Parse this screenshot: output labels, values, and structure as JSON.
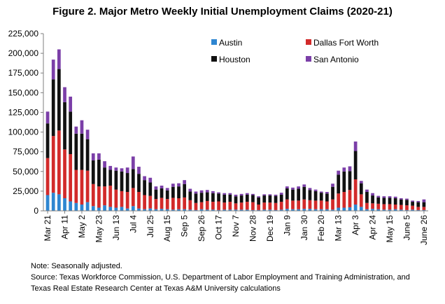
{
  "title": "Figure 2. Major Metro Weekly Initial Unemployment Claims (2020-21)",
  "note": "Note: Seasonally adjusted.",
  "source": "Source: Texas Workforce Commission, U.S. Department of Labor Employment and Training Administration, and Texas Real Estate Research Center at Texas A&M University calculations",
  "chart_data": {
    "type": "bar",
    "stacked": true,
    "ylim": [
      0,
      225000
    ],
    "yticks": [
      0,
      25000,
      50000,
      75000,
      100000,
      125000,
      150000,
      175000,
      200000,
      225000
    ],
    "ytick_labels": [
      "0",
      "25,000",
      "50,000",
      "75,000",
      "100,000",
      "125,000",
      "150,000",
      "175,000",
      "200,000",
      "225,000"
    ],
    "xtick_labels": [
      {
        "index": 0,
        "label": "Mar 21"
      },
      {
        "index": 3,
        "label": "Apr 11"
      },
      {
        "index": 6,
        "label": "May 2"
      },
      {
        "index": 9,
        "label": "May 23"
      },
      {
        "index": 12,
        "label": "Jun 13"
      },
      {
        "index": 15,
        "label": "Jul 4"
      },
      {
        "index": 18,
        "label": "Jul 25"
      },
      {
        "index": 21,
        "label": "Aug 15"
      },
      {
        "index": 24,
        "label": "Sep 5"
      },
      {
        "index": 27,
        "label": "Sep 26"
      },
      {
        "index": 30,
        "label": "Oct 17"
      },
      {
        "index": 33,
        "label": "Nov 7"
      },
      {
        "index": 36,
        "label": "Nov 28"
      },
      {
        "index": 39,
        "label": "Dec 19"
      },
      {
        "index": 42,
        "label": "Jan 9"
      },
      {
        "index": 45,
        "label": "Jan 30"
      },
      {
        "index": 48,
        "label": "Feb 20"
      },
      {
        "index": 51,
        "label": "Mar 13"
      },
      {
        "index": 54,
        "label": "Apr 3"
      },
      {
        "index": 57,
        "label": "Apr 24"
      },
      {
        "index": 60,
        "label": "May 15"
      },
      {
        "index": 63,
        "label": "June 5"
      },
      {
        "index": 66,
        "label": "June 26"
      }
    ],
    "legend_position": "top-right",
    "series": [
      {
        "name": "Austin",
        "color": "#2E86D1",
        "values": [
          20000,
          23000,
          21000,
          16000,
          12000,
          10000,
          8000,
          11000,
          6000,
          4000,
          7000,
          5000,
          4000,
          5000,
          3000,
          6000,
          3000,
          2000,
          3000,
          2000,
          2500,
          2000,
          1500,
          2000,
          2000,
          1500,
          1000,
          2000,
          1500,
          1500,
          1000,
          1500,
          1500,
          1500,
          1500,
          1500,
          1000,
          1000,
          1500,
          1500,
          1000,
          1500,
          2500,
          2000,
          2000,
          2500,
          2500,
          2000,
          2000,
          2000,
          1500,
          4000,
          4000,
          4500,
          8000,
          5000,
          2000,
          2500,
          2000,
          1500,
          1500,
          2000,
          1500,
          1000,
          1500,
          1000,
          1000
        ]
      },
      {
        "name": "Dallas Fort Worth",
        "color": "#D22A2A",
        "values": [
          47000,
          72000,
          81000,
          62000,
          60000,
          42000,
          44000,
          40000,
          28000,
          27000,
          24000,
          27000,
          23000,
          20000,
          21000,
          23000,
          21000,
          18000,
          16000,
          13000,
          14000,
          13000,
          15000,
          14000,
          15000,
          12000,
          9000,
          9000,
          11000,
          10000,
          11000,
          9000,
          10000,
          8000,
          9000,
          10000,
          10000,
          7000,
          9000,
          9000,
          9000,
          10000,
          12000,
          11000,
          11000,
          12000,
          11000,
          11000,
          11000,
          10000,
          13000,
          18000,
          20000,
          22000,
          32000,
          16000,
          8000,
          7000,
          7000,
          7000,
          7000,
          6000,
          6000,
          6000,
          5000,
          4000,
          4000
        ]
      },
      {
        "name": "Houston",
        "color": "#111111",
        "values": [
          44000,
          72000,
          78000,
          60000,
          54000,
          46000,
          46000,
          40000,
          30000,
          34000,
          24000,
          20000,
          24000,
          25000,
          24000,
          24000,
          23000,
          19000,
          17000,
          12000,
          12000,
          11000,
          14000,
          15000,
          17000,
          11000,
          12000,
          12000,
          11000,
          11000,
          10000,
          10000,
          9000,
          9000,
          9000,
          9000,
          9000,
          9000,
          9000,
          9000,
          9000,
          9000,
          14000,
          14000,
          15000,
          16000,
          13000,
          12000,
          10000,
          10000,
          16000,
          24000,
          26000,
          24000,
          36000,
          14000,
          14000,
          10000,
          8000,
          8000,
          8000,
          8000,
          7000,
          7000,
          5000,
          6000,
          6000
        ]
      },
      {
        "name": "San Antonio",
        "color": "#7B3FA8",
        "values": [
          15000,
          25000,
          25000,
          19000,
          19000,
          9000,
          17000,
          12000,
          9000,
          8000,
          8000,
          5000,
          4000,
          4000,
          7000,
          16000,
          9000,
          5000,
          6000,
          4000,
          3500,
          3000,
          4000,
          4000,
          5000,
          3500,
          2500,
          3000,
          3000,
          2500,
          1500,
          2000,
          2000,
          2000,
          2000,
          2000,
          1500,
          1500,
          1500,
          1500,
          1500,
          2500,
          2500,
          2500,
          3000,
          3000,
          2500,
          2000,
          1500,
          2000,
          4000,
          5000,
          5000,
          6000,
          12000,
          3000,
          3000,
          3000,
          2000,
          2000,
          2000,
          2000,
          1500,
          1500,
          1500,
          1500,
          3500
        ]
      }
    ]
  }
}
